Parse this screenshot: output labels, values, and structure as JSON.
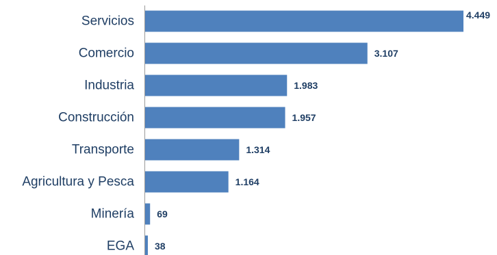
{
  "chart_data": {
    "type": "bar",
    "orientation": "horizontal",
    "title": "",
    "xlabel": "",
    "ylabel": "",
    "categories": [
      "Servicios",
      "Comercio",
      "Industria",
      "Construcción",
      "Transporte",
      "Agricultura y Pesca",
      "Minería",
      "EGA"
    ],
    "values": [
      4449,
      3107,
      1983,
      1957,
      1314,
      1164,
      69,
      38
    ],
    "value_labels": [
      "4.449",
      "3.107",
      "1.983",
      "1.957",
      "1.314",
      "1.164",
      "69",
      "38"
    ],
    "xlim": [
      0,
      4449
    ],
    "grid": false,
    "legend": "none",
    "colors": {
      "bar": "#4f81bd",
      "axis": "#9a9a9a",
      "category_text": "#1f3e64",
      "value_text": "#1f3e64"
    }
  }
}
